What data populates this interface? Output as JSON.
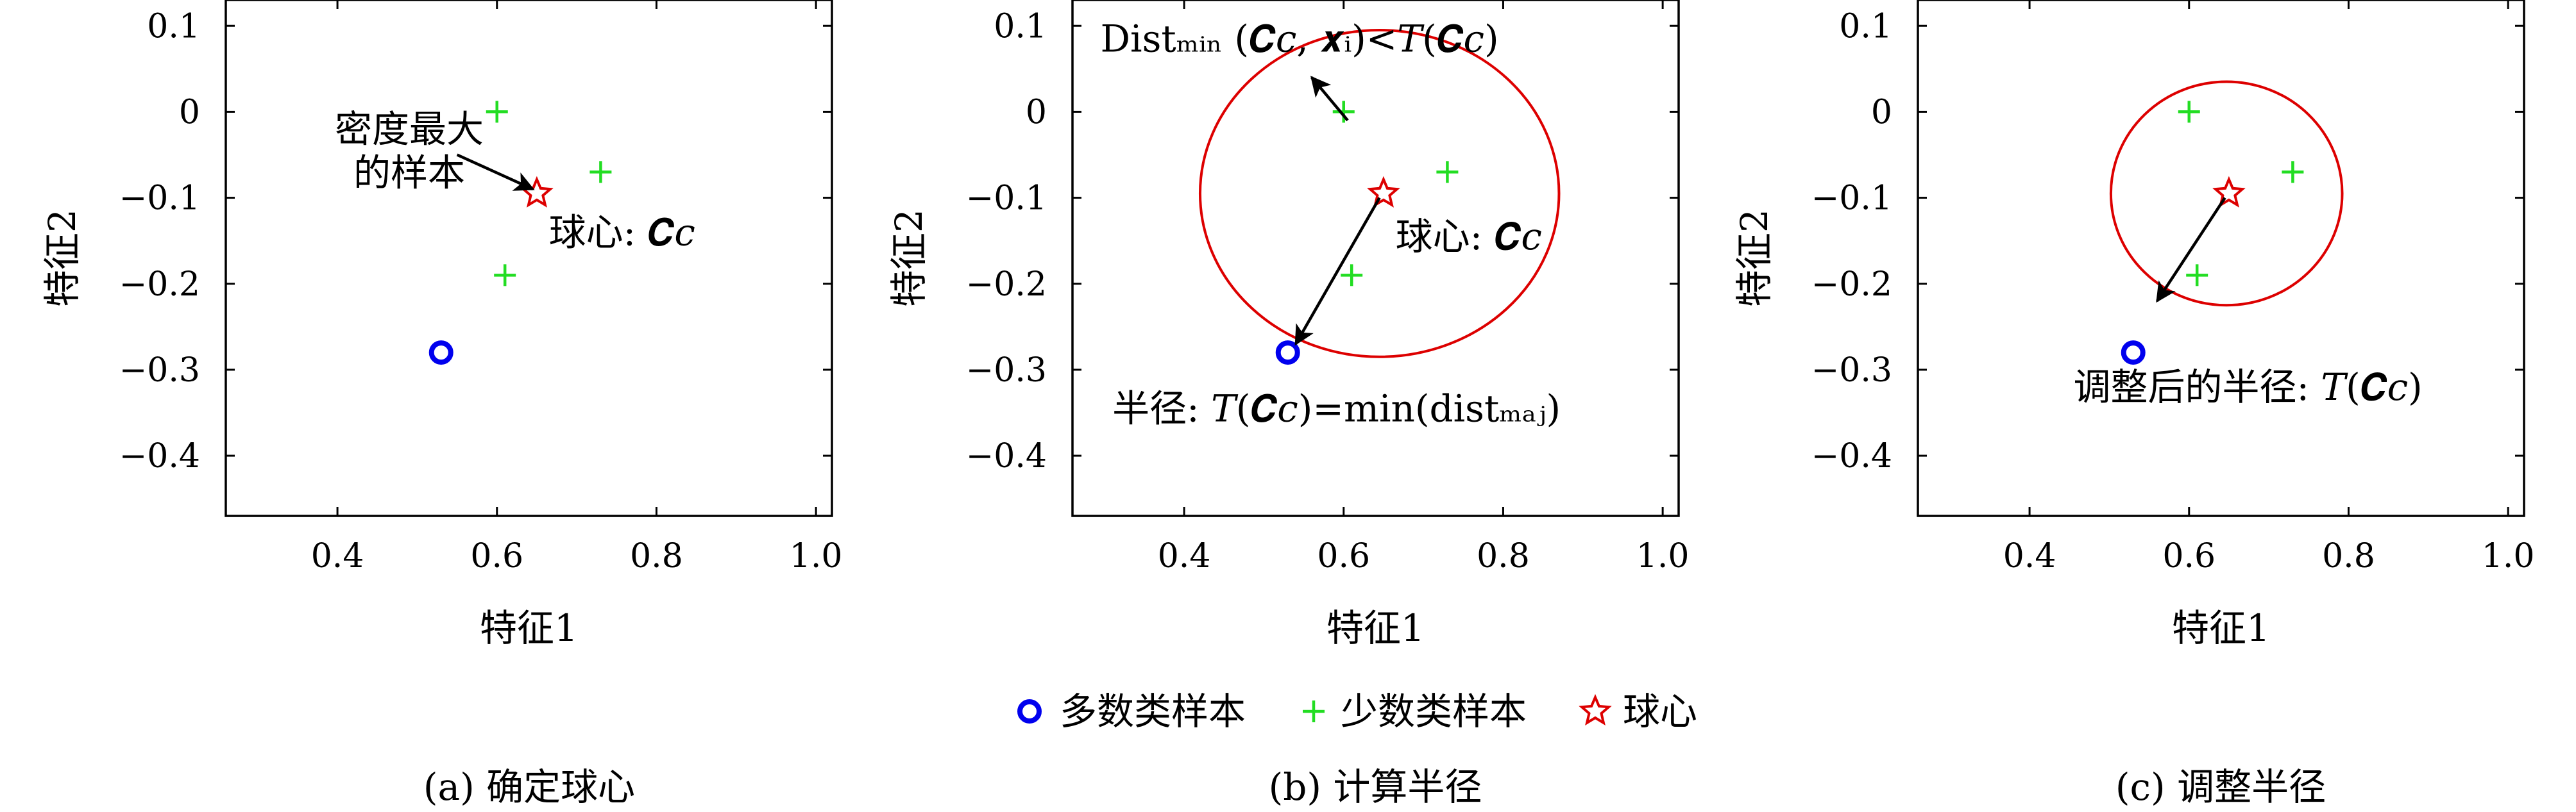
{
  "chart_data": [
    {
      "type": "scatter",
      "caption": "(a) 确定球心",
      "xlabel": "特征1",
      "ylabel": "特征2",
      "xlim": [
        0.26,
        1.02
      ],
      "ylim": [
        -0.47,
        0.13
      ],
      "xticks": [
        0.4,
        0.6,
        0.8,
        1.0
      ],
      "yticks": [
        0.1,
        0,
        -0.1,
        -0.2,
        -0.3,
        -0.4
      ],
      "xtick_labels": [
        "0.4",
        "0.6",
        "0.8",
        "1.0"
      ],
      "ytick_labels": [
        "0.1",
        "0",
        "−0.1",
        "−0.2",
        "−0.3",
        "−0.4"
      ],
      "majority": [
        {
          "x": 0.53,
          "y": -0.28
        }
      ],
      "minority": [
        {
          "x": 0.6,
          "y": 0.0
        },
        {
          "x": 0.73,
          "y": -0.07
        },
        {
          "x": 0.61,
          "y": -0.19
        }
      ],
      "center": {
        "x": 0.65,
        "y": -0.095
      },
      "circle": null,
      "annotations": [
        {
          "lines": [
            "密度最大",
            "的样本"
          ],
          "x": 0.49,
          "y": -0.035,
          "align": "middle"
        },
        {
          "lines": [
            "球心: 𝑪𝑐"
          ],
          "x": 0.665,
          "y": -0.155,
          "align": "start"
        }
      ],
      "arrows": [
        {
          "from": [
            0.55,
            -0.05
          ],
          "to": [
            0.645,
            -0.09
          ]
        }
      ]
    },
    {
      "type": "scatter",
      "caption": "(b) 计算半径",
      "xlabel": "特征1",
      "ylabel": "特征2",
      "xlim": [
        0.26,
        1.02
      ],
      "ylim": [
        -0.47,
        0.13
      ],
      "xticks": [
        0.4,
        0.6,
        0.8,
        1.0
      ],
      "yticks": [
        0.1,
        0,
        -0.1,
        -0.2,
        -0.3,
        -0.4
      ],
      "xtick_labels": [
        "0.4",
        "0.6",
        "0.8",
        "1.0"
      ],
      "ytick_labels": [
        "0.1",
        "0",
        "−0.1",
        "−0.2",
        "−0.3",
        "−0.4"
      ],
      "majority": [
        {
          "x": 0.53,
          "y": -0.28
        }
      ],
      "minority": [
        {
          "x": 0.6,
          "y": 0.0
        },
        {
          "x": 0.73,
          "y": -0.07
        },
        {
          "x": 0.61,
          "y": -0.19
        }
      ],
      "center": {
        "x": 0.65,
        "y": -0.095
      },
      "circle": {
        "cx": 0.645,
        "cy": -0.095,
        "rx": 0.225,
        "ry": 0.19
      },
      "annotations": [
        {
          "lines": [
            "Distₘᵢₙ (𝑪𝑐, 𝒙ᵢ)<𝑇(𝑪𝑐)"
          ],
          "x": 0.295,
          "y": 0.07,
          "align": "start"
        },
        {
          "lines": [
            "球心: 𝑪𝑐"
          ],
          "x": 0.665,
          "y": -0.16,
          "align": "start"
        },
        {
          "lines": [
            "半径: 𝑇(𝑪𝑐)=min(distₘₐⱼ)"
          ],
          "x": 0.31,
          "y": -0.36,
          "align": "start"
        }
      ],
      "arrows": [
        {
          "from": [
            0.605,
            -0.01
          ],
          "to": [
            0.56,
            0.04
          ]
        },
        {
          "from": [
            0.645,
            -0.1
          ],
          "to": [
            0.54,
            -0.27
          ]
        }
      ]
    },
    {
      "type": "scatter",
      "caption": "(c) 调整半径",
      "xlabel": "特征1",
      "ylabel": "特征2",
      "xlim": [
        0.26,
        1.02
      ],
      "ylim": [
        -0.47,
        0.13
      ],
      "xticks": [
        0.4,
        0.6,
        0.8,
        1.0
      ],
      "yticks": [
        0.1,
        0,
        -0.1,
        -0.2,
        -0.3,
        -0.4
      ],
      "xtick_labels": [
        "0.4",
        "0.6",
        "0.8",
        "1.0"
      ],
      "ytick_labels": [
        "0.1",
        "0",
        "−0.1",
        "−0.2",
        "−0.3",
        "−0.4"
      ],
      "majority": [
        {
          "x": 0.53,
          "y": -0.28
        }
      ],
      "minority": [
        {
          "x": 0.6,
          "y": 0.0
        },
        {
          "x": 0.73,
          "y": -0.07
        },
        {
          "x": 0.61,
          "y": -0.19
        }
      ],
      "center": {
        "x": 0.65,
        "y": -0.095
      },
      "circle": {
        "cx": 0.647,
        "cy": -0.095,
        "rx": 0.145,
        "ry": 0.13
      },
      "annotations": [
        {
          "lines": [
            "调整后的半径: 𝑇(𝑪𝑐)"
          ],
          "x": 0.455,
          "y": -0.335,
          "align": "start"
        }
      ],
      "arrows": [
        {
          "from": [
            0.645,
            -0.1
          ],
          "to": [
            0.56,
            -0.22
          ]
        }
      ]
    }
  ],
  "legend": {
    "placement": "bottom-center",
    "entries": [
      {
        "label": "多数类样本",
        "marker": "circle",
        "color": "#0000ee"
      },
      {
        "label": "少数类样本",
        "marker": "plus",
        "color": "#22dd22"
      },
      {
        "label": "球心",
        "marker": "star",
        "color": "#dd0000"
      }
    ]
  },
  "colors": {
    "majority": "#0000ee",
    "minority": "#22dd22",
    "center": "#dd0000",
    "circle": "#dd0000",
    "arrow": "#000000"
  }
}
